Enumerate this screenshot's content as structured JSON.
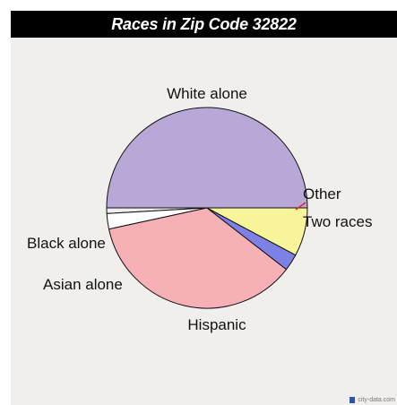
{
  "chart_data": {
    "type": "pie",
    "title": "Races in Zip Code 32822",
    "slices": [
      {
        "label": "White alone",
        "value": 50.0,
        "color": "#b8a8d8"
      },
      {
        "label": "Other",
        "value": 0.9,
        "color": "#eeeeee"
      },
      {
        "label": "Two races",
        "value": 2.5,
        "color": "#ffffff"
      },
      {
        "label": "Hispanic",
        "value": 36.1,
        "color": "#f6b0b6"
      },
      {
        "label": "Asian alone",
        "value": 2.7,
        "color": "#7d80e5"
      },
      {
        "label": "Black alone",
        "value": 7.8,
        "color": "#f7f49a"
      }
    ]
  },
  "watermark": {
    "text": "city-data.com"
  }
}
